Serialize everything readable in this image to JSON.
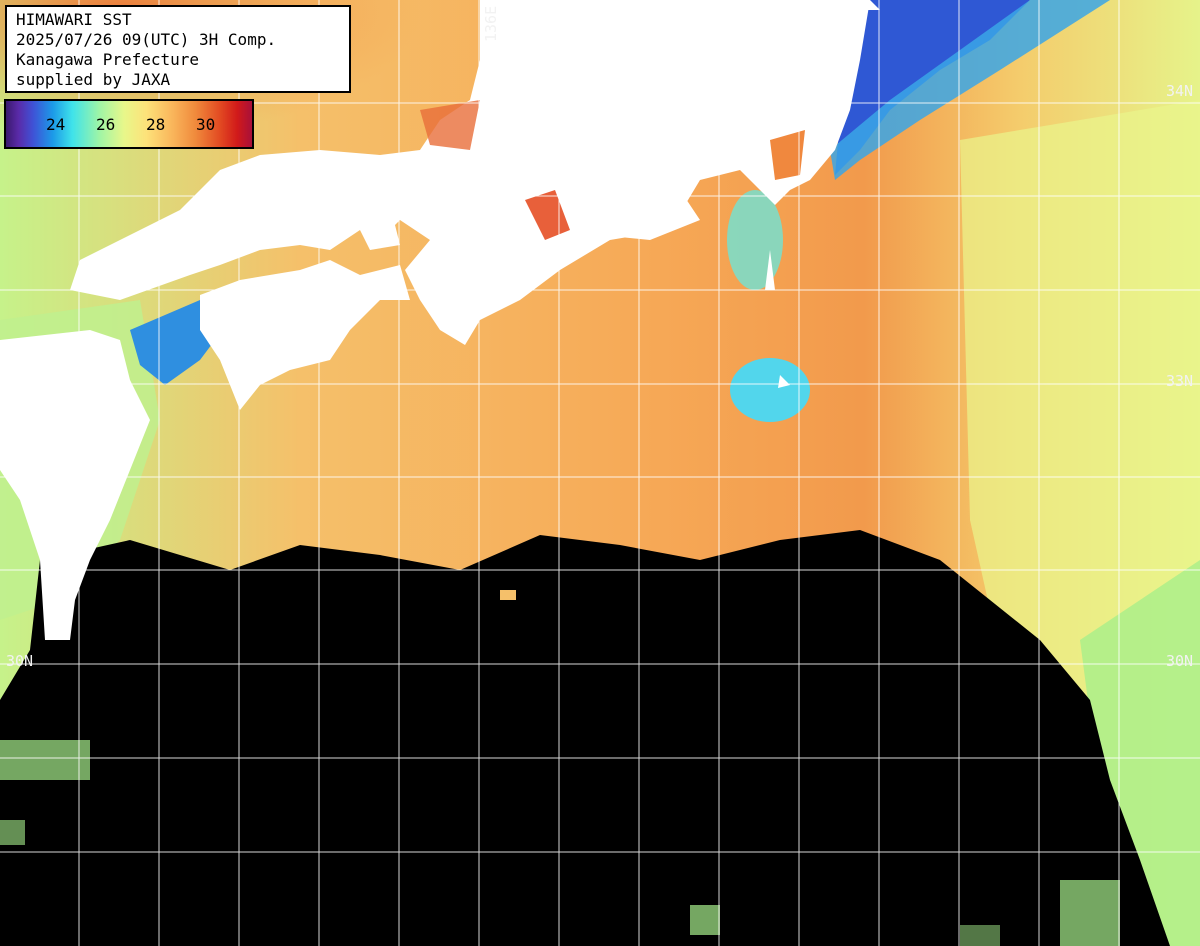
{
  "title_lines": [
    "HIMAWARI SST",
    "2025/07/26 09(UTC) 3H Comp.",
    "Kanagawa Prefecture",
    "supplied by JAXA"
  ],
  "colorbar": {
    "ticks": [
      "24",
      "26",
      "28",
      "30"
    ],
    "unit": ""
  },
  "grid_labels": {
    "lon": [
      "136E"
    ],
    "lat_right": [
      "34N",
      "33N",
      "30N"
    ],
    "lat_left": [
      "30N"
    ]
  },
  "colors": {
    "land": "#ffffff",
    "no_data": "#000000",
    "gridline": "#ffffff",
    "warm_sea": "#f7a552",
    "cool_sea": "#b7ef86",
    "cold_water": "#2b69d6"
  }
}
